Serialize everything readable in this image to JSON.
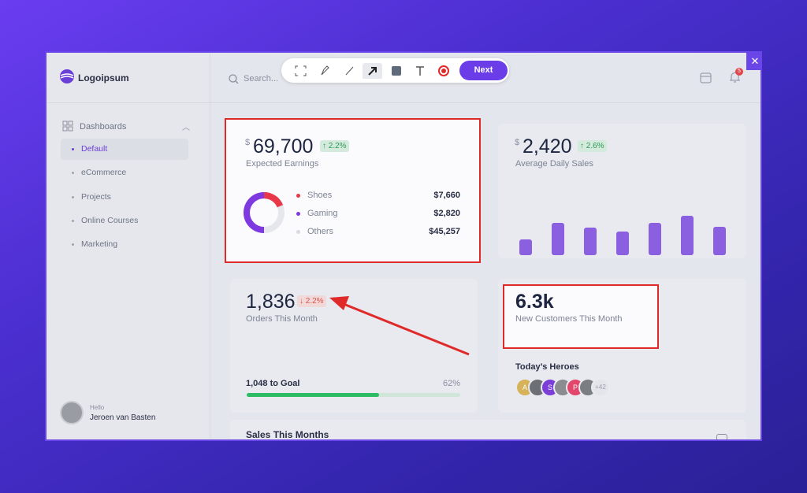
{
  "sidebar": {
    "logo": "Logoipsum",
    "nav_group": "Dashboards",
    "nav_items": [
      "Default",
      "eCommerce",
      "Projects",
      "Online Courses",
      "Marketing"
    ],
    "user": {
      "greeting": "Hello",
      "name": "Jeroen van Basten"
    }
  },
  "header": {
    "search": "Search...",
    "notification_count": "5"
  },
  "toolbar": {
    "next_button": "Next"
  },
  "earnings": {
    "currency": "$",
    "amount": "69,700",
    "change": "↑ 2.2%",
    "label": "Expected Earnings",
    "items": [
      {
        "name": "Shoes",
        "value": "$7,660"
      },
      {
        "name": "Gaming",
        "value": "$2,820"
      },
      {
        "name": "Others",
        "value": "$45,257"
      }
    ]
  },
  "daily_sales": {
    "currency": "$",
    "amount": "2,420",
    "change": "↑ 2.6%",
    "label": "Average Daily Sales",
    "bars": [
      20,
      41,
      35,
      30,
      41,
      50,
      36
    ]
  },
  "orders": {
    "amount": "1,836",
    "change": "↓ 2.2%",
    "label": "Orders This Month",
    "goal_label": "1,048 to Goal",
    "goal_percent": 62,
    "goal_percent_label": "62%"
  },
  "customers": {
    "amount": "6.3k",
    "label": "New Customers This Month",
    "heroes_title": "Today’s Heroes",
    "avatar_letters": [
      "A",
      "S",
      "P"
    ],
    "more": "+42"
  },
  "sales": {
    "title": "Sales This Months"
  }
}
